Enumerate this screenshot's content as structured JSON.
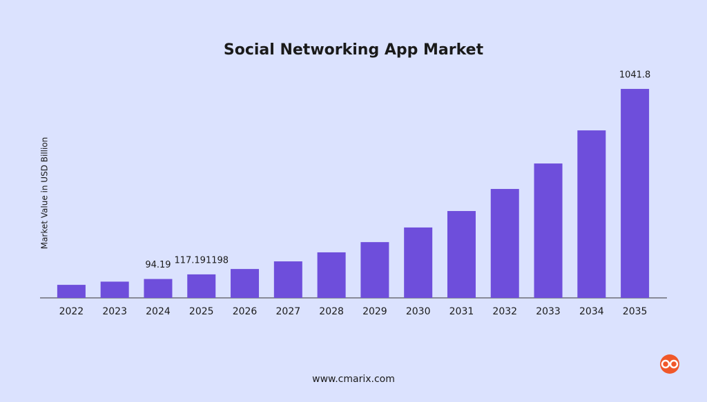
{
  "chart_data": {
    "type": "bar",
    "title": "Social Networking App Market",
    "y_label": "Market Value in USD Billion",
    "categories": [
      "2022",
      "2023",
      "2024",
      "2025",
      "2026",
      "2027",
      "2028",
      "2029",
      "2030",
      "2031",
      "2032",
      "2033",
      "2034",
      "2035"
    ],
    "values": [
      65,
      81,
      94.19,
      117.191198,
      144,
      182,
      227,
      278,
      351,
      433,
      543,
      670,
      835,
      1041.8
    ],
    "value_labels": [
      null,
      null,
      "94.19",
      "117.191198",
      null,
      null,
      null,
      null,
      null,
      null,
      null,
      null,
      null,
      "1041.8"
    ],
    "color": "#6e4edb",
    "ylim": [
      0,
      1100
    ],
    "footer": "www.cmarix.com"
  }
}
